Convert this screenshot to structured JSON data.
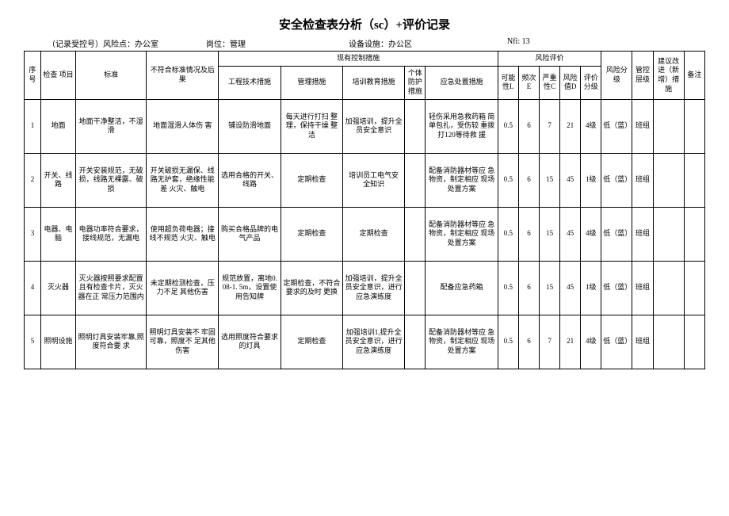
{
  "title": "安全检查表分析（sc）+评价记录",
  "meta": {
    "m1": "（记录受控号）风险点：办公室",
    "m2": "岗位：管理",
    "m3": "设备设施：办公区",
    "m4": "Nfi: 13"
  },
  "headers": {
    "seq": "序号",
    "item": "检查 项目",
    "std": "标准",
    "nonstd": "不符合标准情况及后果",
    "existing": "现有控制措施",
    "eng": "工程技术措施",
    "mgmt": "管理措施",
    "train": "培训教育措施",
    "ppe": "个体防护措施",
    "emerg": "应急处置措施",
    "riskeval": "风险评价",
    "L": "可能性L",
    "E": "频次E",
    "C": "严重性C",
    "D": "风险值D",
    "grade": "评价分级",
    "risklvl": "风险分级",
    "ctrllvl": "管控层级",
    "suggest": "建议改进（新增）措施",
    "remark": "备注"
  },
  "rows": [
    {
      "seq": "1",
      "item": "地面",
      "std": "地面干净整洁，不湿滑",
      "nonstd": "地面湿滑人体伤 害",
      "eng": "铺设防滑地面",
      "mgmt": "每天进行打扫 整理，保持干燥 整洁",
      "train": "加强培训，提升全员安全意识",
      "ppe": "",
      "emerg": "轻伤采用急救药箱 简单包扎，受伤较 重拨打120等待救 援",
      "L": "0.5",
      "E": "6",
      "C": "7",
      "D": "21",
      "grade": "4级",
      "risklvl": "低（蓝）",
      "ctrllvl": "班组",
      "suggest": "",
      "remark": ""
    },
    {
      "seq": "2",
      "item": "开关、线路",
      "std": "开关安装规范，无破损，线路无裸露、破损",
      "nonstd": "开关破损无漏保、线路无护套，绝缘性能差 火灾、触电",
      "eng": "选用合格的开关、线路",
      "mgmt": "定期检查",
      "train": "培训员工电气安 全知识",
      "ppe": "",
      "emerg": "配备消防器材等应 急物资，制定相应 现场处置方案",
      "L": "0.5",
      "E": "6",
      "C": "15",
      "D": "45",
      "grade": "1级",
      "risklvl": "低（蓝）",
      "ctrllvl": "班组",
      "suggest": "",
      "remark": ""
    },
    {
      "seq": "3",
      "item": "电器、电脑",
      "std": "电器功率符合要求，接线规范，无漏电",
      "nonstd": "使用超负荷电器；接线不规范 火灾、触电",
      "eng": "购买合格品牌的电气产品",
      "mgmt": "定期检查",
      "train": "定期检查",
      "ppe": "",
      "emerg": "配备消防器材等应 急物资，制定相应 现场处置方案",
      "L": "0.5",
      "E": "6",
      "C": "15",
      "D": "45",
      "grade": "4级",
      "risklvl": "低（蓝）",
      "ctrllvl": "班组",
      "suggest": "",
      "remark": ""
    },
    {
      "seq": "4",
      "item": "灭火器",
      "std": "灭火器按照要求配置且有检查卡片，灭火器在正 常压力范围内",
      "nonstd": "未定期检测检查，压力不足 其他伤害",
      "eng": "规范放置，离地0. 08-1. 5m，设置使用告知牌",
      "mgmt": "定期检查，不符合要求的及时 更换",
      "train": "加强培训，提升全员安全意识，进行应急演练度",
      "ppe": "",
      "emerg": "配备应急药箱",
      "L": "0.5",
      "E": "6",
      "C": "15",
      "D": "45",
      "grade": "1级",
      "risklvl": "低（蓝）",
      "ctrllvl": "班组",
      "suggest": "",
      "remark": ""
    },
    {
      "seq": "5",
      "item": "照明设施",
      "std": "照明灯具安装牢靠,照度符合要 求",
      "nonstd": "照明灯具安装不 牢固可靠，照度不 足其他伤害",
      "eng": "选用照度符合要求的灯具",
      "mgmt": "定期检查",
      "train": "加强培训1,提升全员安全意识，进行应急演练度",
      "ppe": "",
      "emerg": "配备消防器材等应 急物资，制定相应 现场处置方案",
      "L": "0.5",
      "E": "6",
      "C": "7",
      "D": "21",
      "grade": "4级",
      "risklvl": "低（蓝）",
      "ctrllvl": "班组",
      "suggest": "",
      "remark": ""
    }
  ]
}
